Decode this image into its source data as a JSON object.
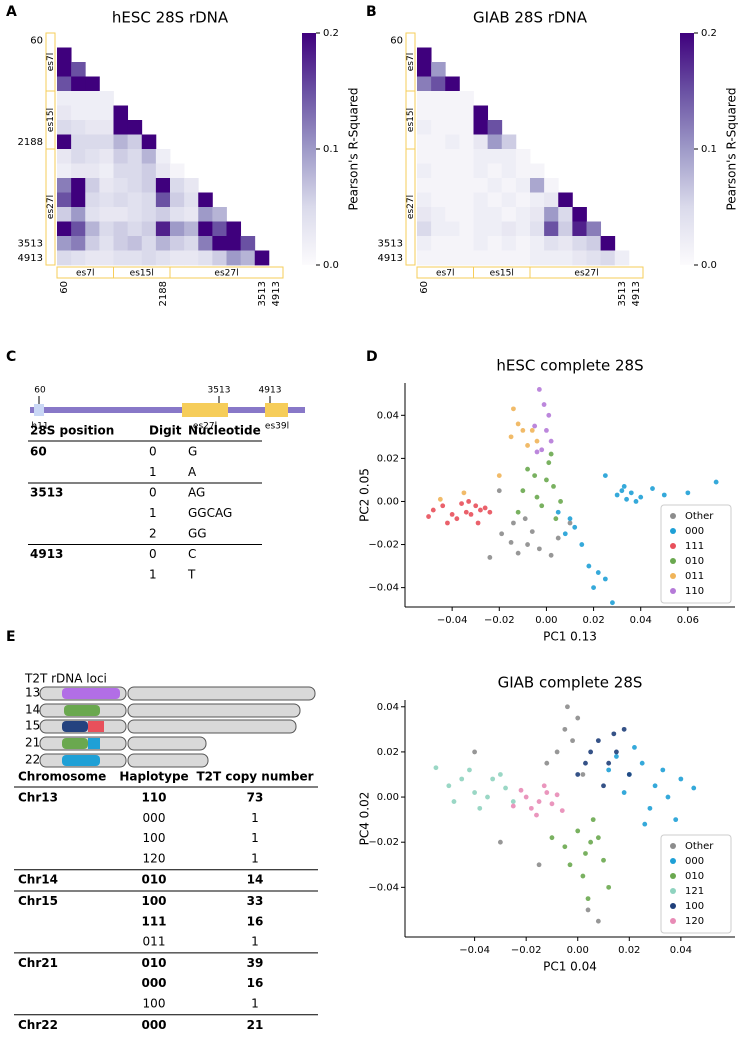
{
  "panel_labels": [
    "A",
    "B",
    "C",
    "D",
    "E"
  ],
  "chart_data": [
    {
      "type": "heatmap",
      "title": "hESC 28S rDNA",
      "colormap": "Purples",
      "categories": [
        "60",
        null,
        null,
        null,
        null,
        null,
        null,
        "2188",
        null,
        null,
        null,
        null,
        null,
        null,
        "3513",
        "4913"
      ],
      "regions": [
        "es7l",
        "es15l",
        "es27l"
      ],
      "values": [
        [],
        [
          0.2
        ],
        [
          0.2,
          0.15
        ],
        [
          0.15,
          0.2,
          0.2
        ],
        [
          0.02,
          0.02,
          0.02,
          0.02
        ],
        [
          0.03,
          0.02,
          0.02,
          0.02,
          0.2
        ],
        [
          0.05,
          0.04,
          0.03,
          0.03,
          0.2,
          0.2
        ],
        [
          0.2,
          0.05,
          0.05,
          0.05,
          0.08,
          0.06,
          0.2
        ],
        [
          0.03,
          0.05,
          0.04,
          0.03,
          0.06,
          0.05,
          0.08,
          0.02
        ],
        [
          0.02,
          0.03,
          0.03,
          0.02,
          0.05,
          0.05,
          0.06,
          0.03,
          0.01
        ],
        [
          0.12,
          0.2,
          0.06,
          0.03,
          0.04,
          0.05,
          0.06,
          0.2,
          0.05,
          0.03
        ],
        [
          0.15,
          0.2,
          0.05,
          0.04,
          0.05,
          0.04,
          0.05,
          0.15,
          0.06,
          0.04,
          0.2
        ],
        [
          0.06,
          0.1,
          0.04,
          0.03,
          0.03,
          0.04,
          0.05,
          0.06,
          0.04,
          0.03,
          0.1,
          0.08
        ],
        [
          0.2,
          0.15,
          0.08,
          0.05,
          0.06,
          0.05,
          0.06,
          0.18,
          0.1,
          0.08,
          0.2,
          0.15,
          0.2
        ],
        [
          0.1,
          0.12,
          0.06,
          0.04,
          0.06,
          0.07,
          0.05,
          0.08,
          0.06,
          0.05,
          0.12,
          0.2,
          0.2,
          0.15
        ],
        [
          0.05,
          0.04,
          0.03,
          0.03,
          0.04,
          0.04,
          0.05,
          0.04,
          0.03,
          0.03,
          0.04,
          0.06,
          0.1,
          0.08,
          0.2
        ]
      ],
      "zlim": [
        0,
        0.2
      ],
      "zticks": [
        {
          "value": 0,
          "label": "0.0"
        },
        0.1,
        0.2
      ],
      "colorbar_label": "Pearson's R-Squared"
    },
    {
      "type": "heatmap",
      "title": "GIAB 28S rDNA",
      "colormap": "Purples",
      "categories": [
        "60",
        null,
        null,
        null,
        null,
        null,
        null,
        null,
        null,
        null,
        null,
        null,
        null,
        null,
        "3513",
        "4913"
      ],
      "regions": [
        "es7l",
        "es15l",
        "es27l"
      ],
      "values": [
        [],
        [
          0.2
        ],
        [
          0.2,
          0.1
        ],
        [
          0.12,
          0.15,
          0.2
        ],
        [
          0.01,
          0.01,
          0.01,
          0.01
        ],
        [
          0.01,
          0.01,
          0.01,
          0.01,
          0.2
        ],
        [
          0.02,
          0.01,
          0.01,
          0.01,
          0.2,
          0.15
        ],
        [
          0.01,
          0.01,
          0.02,
          0.01,
          0.03,
          0.1,
          0.06
        ],
        [
          0.01,
          0.01,
          0.01,
          0.01,
          0.02,
          0.02,
          0.02,
          0.01
        ],
        [
          0.02,
          0.01,
          0.01,
          0.01,
          0.02,
          0.01,
          0.02,
          0.01,
          0.01
        ],
        [
          0.01,
          0.01,
          0.01,
          0.01,
          0.01,
          0.02,
          0.01,
          0.02,
          0.09,
          0.01
        ],
        [
          0.02,
          0.01,
          0.01,
          0.01,
          0.02,
          0.01,
          0.02,
          0.01,
          0.02,
          0.03,
          0.2
        ],
        [
          0.03,
          0.02,
          0.01,
          0.01,
          0.02,
          0.02,
          0.01,
          0.02,
          0.03,
          0.1,
          0.05,
          0.2
        ],
        [
          0.05,
          0.02,
          0.02,
          0.01,
          0.02,
          0.02,
          0.03,
          0.02,
          0.04,
          0.15,
          0.06,
          0.18,
          0.12
        ],
        [
          0.02,
          0.01,
          0.01,
          0.01,
          0.02,
          0.01,
          0.02,
          0.01,
          0.02,
          0.04,
          0.03,
          0.05,
          0.06,
          0.2
        ],
        [
          0.01,
          0.01,
          0.01,
          0.01,
          0.01,
          0.01,
          0.01,
          0.01,
          0.02,
          0.02,
          0.02,
          0.03,
          0.04,
          0.05,
          0.02
        ]
      ],
      "zlim": [
        0,
        0.2
      ],
      "zticks": [
        {
          "value": 0,
          "label": "0.0"
        },
        0.1,
        0.2
      ],
      "colorbar_label": "Pearson's R-Squared"
    },
    {
      "type": "scatter",
      "title": "hESC complete 28S",
      "xlabel": "PC1 0.13",
      "ylabel": "PC2 0.05",
      "legend": "lower right",
      "xlim": [
        -0.06,
        0.08
      ],
      "ylim": [
        -0.049,
        0.055
      ],
      "xticks": [
        {
          "value": -0.04,
          "label": "−0.04"
        },
        {
          "value": -0.02,
          "label": "−0.02"
        },
        {
          "value": 0,
          "label": "0.00"
        },
        0.02,
        0.04,
        0.06
      ],
      "yticks": [
        {
          "value": -0.04,
          "label": "−0.04"
        },
        {
          "value": -0.02,
          "label": "−0.02"
        },
        {
          "value": 0,
          "label": "0.00"
        },
        0.02,
        0.04
      ],
      "series": [
        {
          "name": "Other",
          "color": "#8c8c8c",
          "x": [
            -0.024,
            -0.019,
            -0.015,
            -0.012,
            -0.008,
            -0.003,
            -0.006,
            0.002,
            -0.014,
            -0.009,
            0.005,
            -0.02,
            0.01
          ],
          "y": [
            -0.026,
            -0.015,
            -0.019,
            -0.024,
            -0.02,
            -0.022,
            -0.014,
            -0.025,
            -0.01,
            -0.008,
            -0.017,
            0.005,
            -0.01
          ]
        },
        {
          "name": "000",
          "color": "#1fa0d6",
          "x": [
            0.03,
            0.032,
            0.034,
            0.036,
            0.038,
            0.033,
            0.04,
            0.045,
            0.05,
            0.025,
            0.06,
            0.072,
            0.01,
            0.012,
            0.008,
            0.005,
            0.015,
            0.018,
            0.022,
            0.02,
            0.025,
            0.028
          ],
          "y": [
            0.003,
            0.005,
            0.001,
            0.004,
            0,
            0.007,
            0.002,
            0.006,
            0.003,
            0.012,
            0.004,
            0.009,
            -0.008,
            -0.012,
            -0.015,
            -0.005,
            -0.02,
            -0.03,
            -0.033,
            -0.04,
            -0.036,
            -0.047
          ]
        },
        {
          "name": "111",
          "color": "#e8505b",
          "x": [
            -0.028,
            -0.03,
            -0.032,
            -0.026,
            -0.034,
            -0.036,
            -0.038,
            -0.04,
            -0.044,
            -0.048,
            -0.05,
            -0.024,
            -0.029,
            -0.033,
            -0.042
          ],
          "y": [
            -0.004,
            -0.002,
            -0.006,
            -0.003,
            -0.005,
            -0.001,
            -0.008,
            -0.006,
            -0.002,
            -0.004,
            -0.007,
            -0.005,
            -0.01,
            0,
            -0.01
          ]
        },
        {
          "name": "010",
          "color": "#6aa84f",
          "x": [
            -0.005,
            0,
            0.003,
            -0.008,
            0.006,
            -0.002,
            0.001,
            -0.01,
            0.004,
            -0.004,
            -0.012,
            0.002
          ],
          "y": [
            0.012,
            0.01,
            0.007,
            0.015,
            0,
            -0.002,
            0.018,
            0.005,
            -0.008,
            0.002,
            -0.005,
            0.022
          ]
        },
        {
          "name": "011",
          "color": "#f0b459",
          "x": [
            -0.014,
            -0.012,
            -0.01,
            -0.008,
            -0.015,
            -0.004,
            -0.035,
            -0.045,
            -0.02,
            -0.006
          ],
          "y": [
            0.043,
            0.036,
            0.033,
            0.026,
            0.03,
            0.028,
            0.004,
            0.001,
            0.012,
            0.033
          ]
        },
        {
          "name": "110",
          "color": "#b57ad8",
          "x": [
            -0.003,
            0,
            0.002,
            -0.002,
            -0.005,
            0.001,
            -0.001,
            -0.004
          ],
          "y": [
            0.052,
            0.033,
            0.028,
            0.024,
            0.035,
            0.04,
            0.045,
            0.023
          ]
        }
      ]
    },
    {
      "type": "scatter",
      "title": "GIAB complete 28S",
      "xlabel": "PC1 0.04",
      "ylabel": "PC4 0.02",
      "legend": "lower right",
      "xlim": [
        -0.067,
        0.061
      ],
      "ylim": [
        -0.062,
        0.043
      ],
      "xticks": [
        {
          "value": -0.04,
          "label": "−0.04"
        },
        {
          "value": -0.02,
          "label": "−0.02"
        },
        {
          "value": 0,
          "label": "0.00"
        },
        0.02,
        0.04
      ],
      "yticks": [
        {
          "value": -0.04,
          "label": "−0.04"
        },
        {
          "value": -0.02,
          "label": "−0.02"
        },
        {
          "value": 0,
          "label": "0.00"
        },
        0.02,
        0.04
      ],
      "series": [
        {
          "name": "Other",
          "color": "#8c8c8c",
          "x": [
            -0.005,
            -0.002,
            0,
            -0.008,
            0.004,
            -0.012,
            0.002,
            -0.03,
            -0.015,
            0.008,
            -0.004,
            -0.04
          ],
          "y": [
            0.03,
            0.025,
            0.035,
            0.02,
            -0.05,
            0.015,
            0.01,
            -0.02,
            -0.03,
            -0.055,
            0.04,
            0.02
          ]
        },
        {
          "name": "000",
          "color": "#1fa0d6",
          "x": [
            0.02,
            0.025,
            0.03,
            0.035,
            0.04,
            0.015,
            0.028,
            0.045,
            0.022,
            0.033,
            0.018,
            0.038,
            0.012,
            0.026
          ],
          "y": [
            0.01,
            0.015,
            0.005,
            0,
            0.008,
            0.018,
            -0.005,
            0.004,
            0.022,
            0.012,
            0.002,
            -0.01,
            0.012,
            -0.012
          ]
        },
        {
          "name": "010",
          "color": "#6aa84f",
          "x": [
            0,
            0.005,
            0.003,
            0.008,
            -0.003,
            0.01,
            0.002,
            0.006,
            -0.005,
            0.012,
            0.004,
            -0.01
          ],
          "y": [
            -0.015,
            -0.02,
            -0.025,
            -0.018,
            -0.03,
            -0.028,
            -0.035,
            -0.01,
            -0.022,
            -0.04,
            -0.045,
            -0.018
          ]
        },
        {
          "name": "121",
          "color": "#8fd3bf",
          "x": [
            -0.05,
            -0.045,
            -0.04,
            -0.035,
            -0.03,
            -0.038,
            -0.042,
            -0.028,
            -0.025,
            -0.055,
            -0.033,
            -0.048
          ],
          "y": [
            0.005,
            0.008,
            0.002,
            0,
            0.01,
            -0.005,
            0.012,
            0.004,
            -0.002,
            0.013,
            0.008,
            -0.002
          ]
        },
        {
          "name": "100",
          "color": "#1f3f7a",
          "x": [
            0.005,
            0.008,
            0.012,
            0.015,
            0,
            0.01,
            0.018,
            0.003,
            0.02,
            0.014
          ],
          "y": [
            0.02,
            0.025,
            0.015,
            0.02,
            0.01,
            0.005,
            0.03,
            0.015,
            0.01,
            0.028
          ]
        },
        {
          "name": "120",
          "color": "#e88bb6",
          "x": [
            -0.02,
            -0.015,
            -0.012,
            -0.018,
            -0.01,
            -0.022,
            -0.008,
            -0.016,
            -0.013,
            -0.025,
            -0.006
          ],
          "y": [
            0,
            -0.002,
            0.002,
            -0.005,
            -0.003,
            0.003,
            0.001,
            -0.008,
            0.005,
            -0.004,
            -0.006
          ]
        }
      ]
    }
  ],
  "panel_c": {
    "positions": [
      "60",
      "3513",
      "4913"
    ],
    "features": [
      "h11",
      "es27l",
      "es39l"
    ],
    "table": {
      "headers": [
        "28S position",
        "Digit",
        "Nucleotide"
      ],
      "groups": [
        {
          "position": "60",
          "rows": [
            [
              "0",
              "G"
            ],
            [
              "1",
              "A"
            ]
          ]
        },
        {
          "position": "3513",
          "rows": [
            [
              "0",
              "AG"
            ],
            [
              "1",
              "GGCAG"
            ],
            [
              "2",
              "GG"
            ]
          ]
        },
        {
          "position": "4913",
          "rows": [
            [
              "0",
              "C"
            ],
            [
              "1",
              "T"
            ]
          ]
        }
      ]
    }
  },
  "panel_e": {
    "title": "T2T rDNA loci",
    "chromosomes": [
      "13",
      "14",
      "15",
      "21",
      "22"
    ],
    "table": {
      "headers": [
        "Chromosome",
        "Haplotype",
        "T2T copy number"
      ],
      "groups": [
        {
          "chromosome": "Chr13",
          "rows": [
            {
              "haplotype": "110",
              "copy_number": "73",
              "color": "#b06ae0"
            },
            {
              "haplotype": "000",
              "copy_number": "1"
            },
            {
              "haplotype": "100",
              "copy_number": "1"
            },
            {
              "haplotype": "120",
              "copy_number": "1"
            }
          ]
        },
        {
          "chromosome": "Chr14",
          "rows": [
            {
              "haplotype": "010",
              "copy_number": "14",
              "color": "#6aa84f"
            }
          ]
        },
        {
          "chromosome": "Chr15",
          "rows": [
            {
              "haplotype": "100",
              "copy_number": "33",
              "color": "#24427f"
            },
            {
              "haplotype": "111",
              "copy_number": "16",
              "color": "#e8505b"
            },
            {
              "haplotype": "011",
              "copy_number": "1"
            }
          ]
        },
        {
          "chromosome": "Chr21",
          "rows": [
            {
              "haplotype": "010",
              "copy_number": "39",
              "color": "#6aa84f"
            },
            {
              "haplotype": "000",
              "copy_number": "16",
              "color": "#1fa0d6"
            },
            {
              "haplotype": "100",
              "copy_number": "1"
            }
          ]
        },
        {
          "chromosome": "Chr22",
          "rows": [
            {
              "haplotype": "000",
              "copy_number": "21",
              "color": "#1fa0d6"
            }
          ]
        }
      ]
    }
  }
}
